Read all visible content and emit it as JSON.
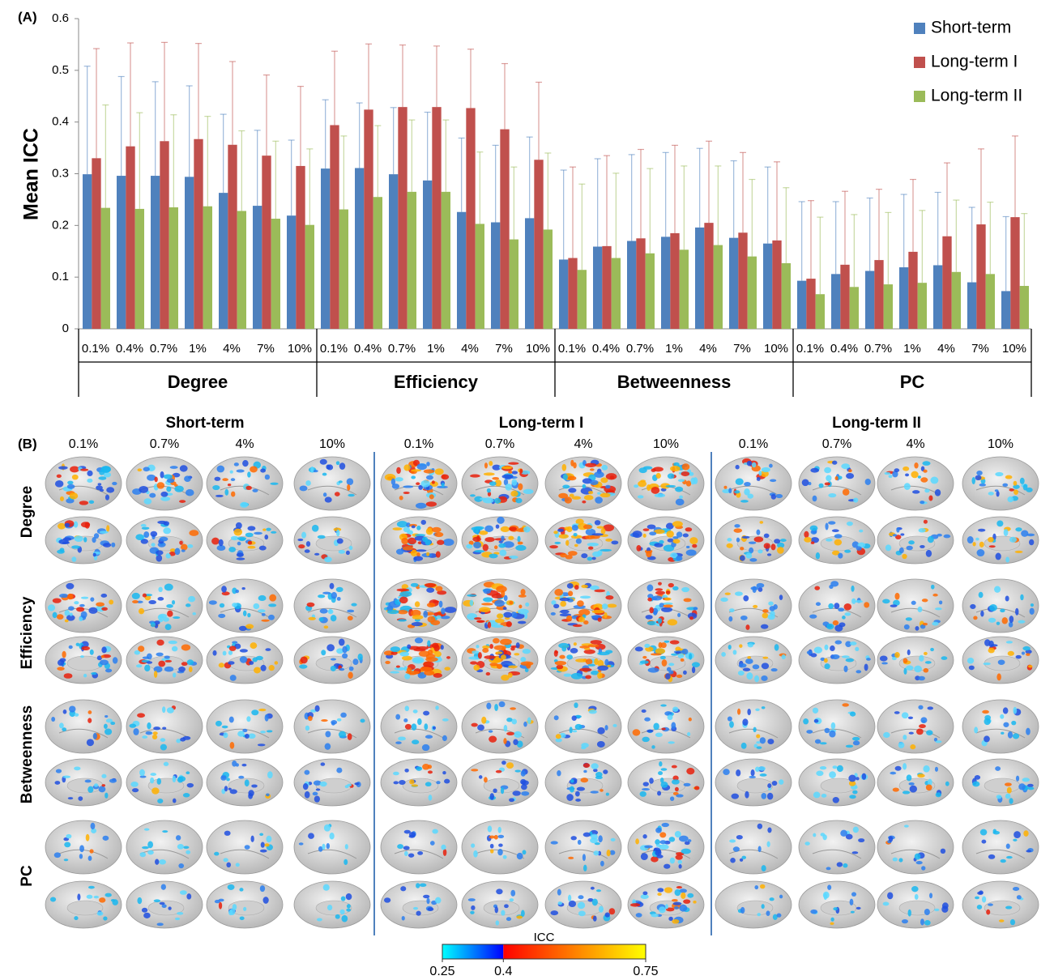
{
  "chart_data": {
    "type": "bar",
    "panel_label": "(A)",
    "ylabel": "Mean ICC",
    "categories": [
      "0.1%",
      "0.4%",
      "0.7%",
      "1%",
      "4%",
      "7%",
      "10%",
      "0.1%",
      "0.4%",
      "0.7%",
      "1%",
      "4%",
      "7%",
      "10%",
      "0.1%",
      "0.4%",
      "0.7%",
      "1%",
      "4%",
      "7%",
      "10%",
      "0.1%",
      "0.4%",
      "0.7%",
      "1%",
      "4%",
      "7%",
      "10%"
    ],
    "groups": [
      "Degree",
      "Efficiency",
      "Betweenness",
      "PC"
    ],
    "series": [
      {
        "name": "Short-term",
        "color": "#4f81bd",
        "values": [
          0.299,
          0.296,
          0.296,
          0.294,
          0.263,
          0.238,
          0.219,
          0.31,
          0.311,
          0.299,
          0.287,
          0.226,
          0.206,
          0.214,
          0.134,
          0.159,
          0.17,
          0.178,
          0.196,
          0.176,
          0.165,
          0.093,
          0.106,
          0.112,
          0.119,
          0.123,
          0.09,
          0.073
        ],
        "errors": [
          0.209,
          0.192,
          0.182,
          0.176,
          0.152,
          0.146,
          0.146,
          0.133,
          0.126,
          0.129,
          0.132,
          0.143,
          0.149,
          0.157,
          0.173,
          0.17,
          0.167,
          0.163,
          0.153,
          0.149,
          0.148,
          0.153,
          0.14,
          0.141,
          0.141,
          0.141,
          0.145,
          0.144
        ]
      },
      {
        "name": "Long-term I",
        "color": "#c0504d",
        "values": [
          0.33,
          0.353,
          0.363,
          0.367,
          0.356,
          0.335,
          0.315,
          0.394,
          0.424,
          0.429,
          0.429,
          0.427,
          0.386,
          0.327,
          0.137,
          0.16,
          0.175,
          0.185,
          0.205,
          0.186,
          0.171,
          0.097,
          0.124,
          0.133,
          0.149,
          0.179,
          0.202,
          0.216
        ],
        "errors": [
          0.212,
          0.2,
          0.191,
          0.185,
          0.161,
          0.156,
          0.154,
          0.143,
          0.127,
          0.12,
          0.118,
          0.114,
          0.127,
          0.15,
          0.176,
          0.175,
          0.172,
          0.17,
          0.158,
          0.155,
          0.152,
          0.151,
          0.142,
          0.137,
          0.14,
          0.142,
          0.146,
          0.157
        ]
      },
      {
        "name": "Long-term II",
        "color": "#9bbb59",
        "values": [
          0.234,
          0.232,
          0.235,
          0.237,
          0.228,
          0.213,
          0.201,
          0.231,
          0.255,
          0.265,
          0.265,
          0.203,
          0.173,
          0.192,
          0.114,
          0.137,
          0.146,
          0.153,
          0.162,
          0.14,
          0.127,
          0.067,
          0.081,
          0.086,
          0.089,
          0.11,
          0.106,
          0.083
        ],
        "errors": [
          0.199,
          0.186,
          0.179,
          0.174,
          0.155,
          0.15,
          0.147,
          0.142,
          0.138,
          0.139,
          0.139,
          0.139,
          0.14,
          0.148,
          0.166,
          0.164,
          0.164,
          0.162,
          0.153,
          0.149,
          0.146,
          0.149,
          0.14,
          0.139,
          0.14,
          0.139,
          0.139,
          0.14
        ]
      }
    ],
    "ylim": [
      0,
      0.6
    ],
    "yticks": [
      0,
      0.1,
      0.2,
      0.3,
      0.4,
      0.5,
      0.6
    ],
    "legend": "upper right"
  },
  "panel_b": {
    "label": "(B)",
    "columns": [
      {
        "title": "Short-term",
        "thresholds": [
          "0.1%",
          "0.7%",
          "4%",
          "10%"
        ]
      },
      {
        "title": "Long-term I",
        "thresholds": [
          "0.1%",
          "0.7%",
          "4%",
          "10%"
        ]
      },
      {
        "title": "Long-term II",
        "thresholds": [
          "0.1%",
          "0.7%",
          "4%",
          "10%"
        ]
      }
    ],
    "rows": [
      "Degree",
      "Efficiency",
      "Betweenness",
      "PC"
    ],
    "colorbar": {
      "title": "ICC",
      "range": [
        0.25,
        0.75
      ],
      "ticks": [
        0.25,
        0.4,
        0.75
      ]
    }
  }
}
